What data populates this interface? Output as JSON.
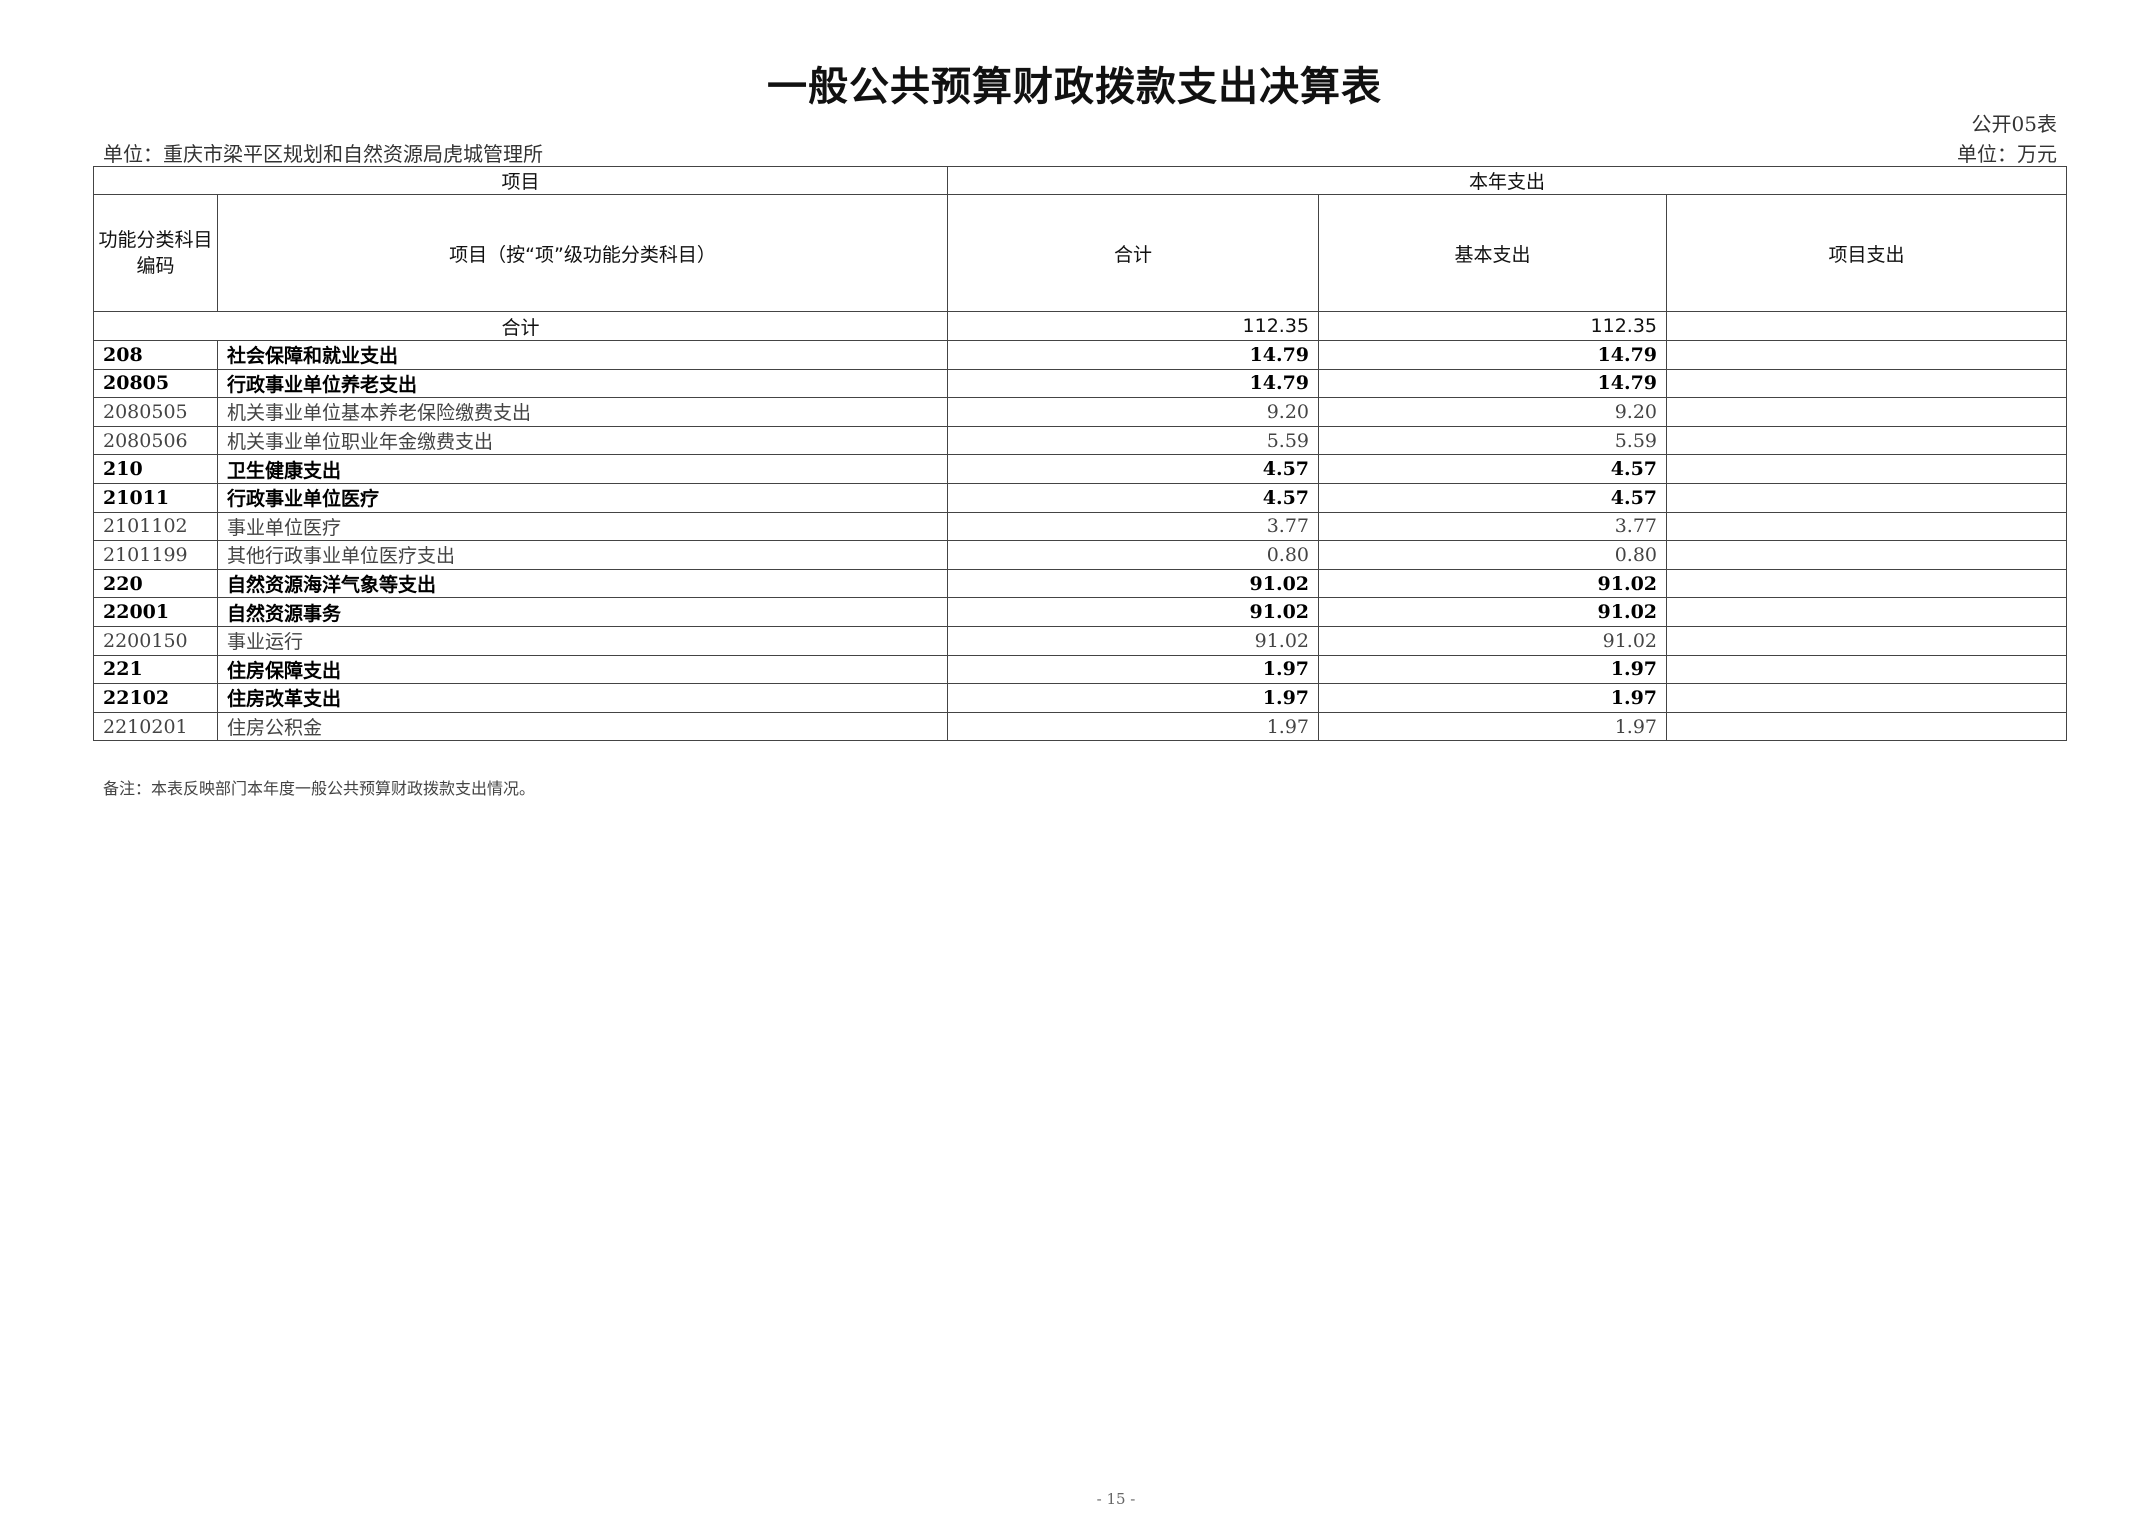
{
  "title": "一般公共预算财政拨款支出决算表",
  "form_no": "公开05表",
  "unit_org": "单位：重庆市梁平区规划和自然资源局虎城管理所",
  "unit_money": "单位：万元",
  "header": {
    "item": "项目",
    "current_year": "本年支出",
    "code": "功能分类科目编码",
    "item_name": "项目（按“项”级功能分类科目）",
    "total": "合计",
    "basic": "基本支出",
    "project": "项目支出"
  },
  "total_row": {
    "label": "合计",
    "total": "112.35",
    "basic": "112.35",
    "project": ""
  },
  "rows": [
    {
      "code": "208",
      "name": "社会保障和就业支出",
      "total": "14.79",
      "basic": "14.79",
      "project": "",
      "bold": true
    },
    {
      "code": "20805",
      "name": "行政事业单位养老支出",
      "total": "14.79",
      "basic": "14.79",
      "project": "",
      "bold": true
    },
    {
      "code": "2080505",
      "name": "机关事业单位基本养老保险缴费支出",
      "total": "9.20",
      "basic": "9.20",
      "project": "",
      "bold": false
    },
    {
      "code": "2080506",
      "name": "机关事业单位职业年金缴费支出",
      "total": "5.59",
      "basic": "5.59",
      "project": "",
      "bold": false
    },
    {
      "code": "210",
      "name": "卫生健康支出",
      "total": "4.57",
      "basic": "4.57",
      "project": "",
      "bold": true
    },
    {
      "code": "21011",
      "name": "行政事业单位医疗",
      "total": "4.57",
      "basic": "4.57",
      "project": "",
      "bold": true
    },
    {
      "code": "2101102",
      "name": "事业单位医疗",
      "total": "3.77",
      "basic": "3.77",
      "project": "",
      "bold": false
    },
    {
      "code": "2101199",
      "name": "其他行政事业单位医疗支出",
      "total": "0.80",
      "basic": "0.80",
      "project": "",
      "bold": false
    },
    {
      "code": "220",
      "name": "自然资源海洋气象等支出",
      "total": "91.02",
      "basic": "91.02",
      "project": "",
      "bold": true
    },
    {
      "code": "22001",
      "name": "自然资源事务",
      "total": "91.02",
      "basic": "91.02",
      "project": "",
      "bold": true
    },
    {
      "code": "2200150",
      "name": "事业运行",
      "total": "91.02",
      "basic": "91.02",
      "project": "",
      "bold": false
    },
    {
      "code": "221",
      "name": "住房保障支出",
      "total": "1.97",
      "basic": "1.97",
      "project": "",
      "bold": true
    },
    {
      "code": "22102",
      "name": "住房改革支出",
      "total": "1.97",
      "basic": "1.97",
      "project": "",
      "bold": true
    },
    {
      "code": "2210201",
      "name": "住房公积金",
      "total": "1.97",
      "basic": "1.97",
      "project": "",
      "bold": false
    }
  ],
  "note": "备注：本表反映部门本年度一般公共预算财政拨款支出情况。",
  "page_number": "- 15 -"
}
